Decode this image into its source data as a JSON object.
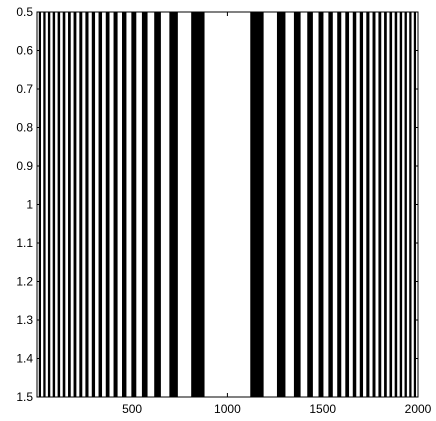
{
  "chart_data": {
    "type": "heatmap",
    "description_free": true,
    "colors": {
      "stripe": "#000000",
      "background": "#ffffff",
      "axis": "#000000"
    },
    "xlim": [
      1,
      2000
    ],
    "ylim": [
      0.5,
      1.5
    ],
    "y_reversed": true,
    "grid": false,
    "x_ticks": [
      500,
      1000,
      1500,
      2000
    ],
    "x_tick_labels": [
      "500",
      "1000",
      "1500",
      "2000"
    ],
    "y_ticks": [
      0.5,
      0.6,
      0.7,
      0.8,
      0.9,
      1.0,
      1.1,
      1.2,
      1.3,
      1.4,
      1.5
    ],
    "y_tick_labels": [
      "0.5",
      "0.6",
      "0.7",
      "0.8",
      "0.9",
      "1",
      "1.1",
      "1.2",
      "1.3",
      "1.4",
      "1.5"
    ],
    "stripe_half_periods": [
      9.0,
      9.1,
      9.2,
      9.3,
      9.5,
      9.7,
      9.9,
      10.1,
      10.3,
      10.5,
      10.8,
      11.0,
      11.3,
      11.6,
      12.0,
      12.3,
      12.7,
      13.2,
      13.6,
      14.2,
      14.8,
      15.5,
      16.3,
      17.2,
      18.3,
      19.6,
      21.2,
      23.2,
      25.9,
      29.5,
      35.0,
      44.5,
      70.0
    ]
  }
}
